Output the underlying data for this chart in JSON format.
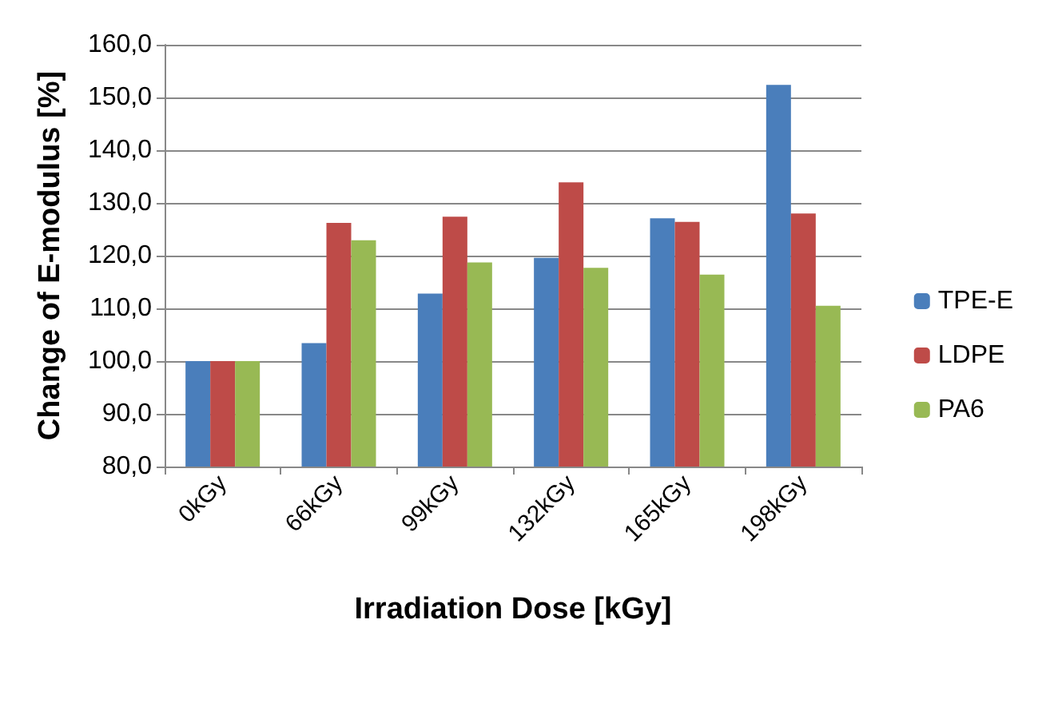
{
  "chart_data": {
    "type": "bar",
    "xlabel": "Irradiation Dose [kGy]",
    "ylabel": "Change of E-modulus [%]",
    "categories": [
      "0kGy",
      "66kGy",
      "99kGy",
      "132kGy",
      "165kGy",
      "198kGy"
    ],
    "series": [
      {
        "name": "TPE-E",
        "color": "#4a7ebb",
        "values": [
          100,
          103.4,
          112.8,
          119.6,
          127.1,
          152.4
        ]
      },
      {
        "name": "LDPE",
        "color": "#be4b48",
        "values": [
          100,
          126.2,
          127.4,
          133.9,
          126.4,
          128.0
        ]
      },
      {
        "name": "PA6",
        "color": "#98b954",
        "values": [
          100,
          122.9,
          118.7,
          117.7,
          116.4,
          110.5
        ]
      }
    ],
    "ylim": [
      80,
      160
    ],
    "yticks": [
      {
        "value": 80,
        "label": "80,0"
      },
      {
        "value": 90,
        "label": "90,0"
      },
      {
        "value": 100,
        "label": "100,0"
      },
      {
        "value": 110,
        "label": "110,0"
      },
      {
        "value": 120,
        "label": "120,0"
      },
      {
        "value": 130,
        "label": "130,0"
      },
      {
        "value": 140,
        "label": "140,0"
      },
      {
        "value": 150,
        "label": "150,0"
      },
      {
        "value": 160,
        "label": "160,0"
      }
    ],
    "grid": "y",
    "legend": "right"
  }
}
